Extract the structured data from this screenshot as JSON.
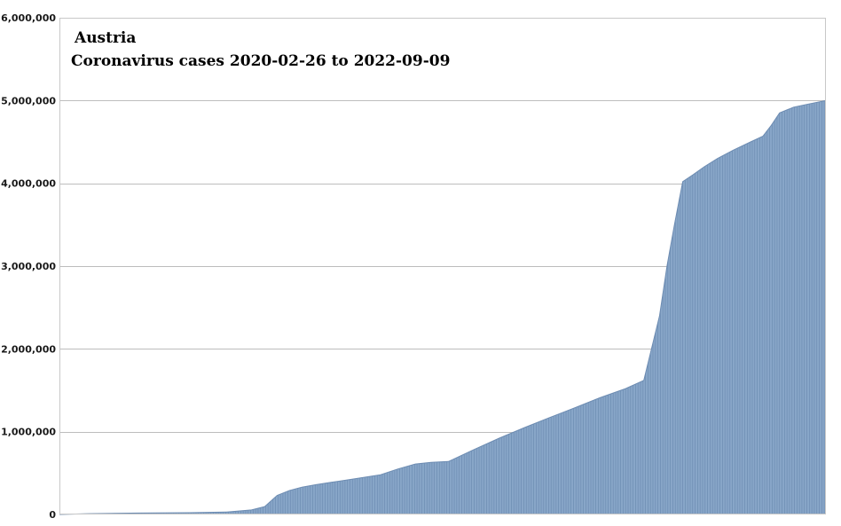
{
  "chart_data": {
    "type": "area",
    "title": "Austria",
    "subtitle": "Coronavirus cases 2020-02-26 to 2022-09-09",
    "xlabel": "",
    "ylabel": "",
    "x_start": "2020-02-26",
    "x_end": "2022-09-09",
    "ylim": [
      0,
      6000000
    ],
    "yticks": [
      0,
      1000000,
      2000000,
      3000000,
      4000000,
      5000000,
      6000000
    ],
    "ytick_labels": [
      "0",
      "1,000,000",
      "2,000,000",
      "3,000,000",
      "4,000,000",
      "5,000,000",
      "6,000,000"
    ],
    "grid": true,
    "legend": "none",
    "series": [
      {
        "x": [
          "2020-02-26",
          "2020-04-01",
          "2020-06-01",
          "2020-08-01",
          "2020-09-15",
          "2020-10-15",
          "2020-10-31",
          "2020-11-15",
          "2020-11-30",
          "2020-12-15",
          "2021-01-01",
          "2021-01-20",
          "2021-02-10",
          "2021-03-01",
          "2021-03-20",
          "2021-04-10",
          "2021-05-01",
          "2021-05-20",
          "2021-06-10",
          "2021-07-10",
          "2021-08-10",
          "2021-09-10",
          "2021-10-10",
          "2021-11-10",
          "2021-12-10",
          "2022-01-10",
          "2022-02-01",
          "2022-02-20",
          "2022-03-01",
          "2022-03-10",
          "2022-03-20",
          "2022-04-01",
          "2022-04-15",
          "2022-05-01",
          "2022-05-20",
          "2022-06-10",
          "2022-06-25",
          "2022-07-05",
          "2022-07-15",
          "2022-08-01",
          "2022-08-20",
          "2022-09-09"
        ],
        "y": [
          0,
          10000,
          17000,
          22000,
          30000,
          55000,
          95000,
          230000,
          290000,
          330000,
          360000,
          390000,
          420000,
          450000,
          480000,
          550000,
          610000,
          630000,
          640000,
          780000,
          920000,
          1050000,
          1170000,
          1290000,
          1410000,
          1520000,
          1620000,
          2400000,
          3000000,
          3500000,
          4020000,
          4100000,
          4200000,
          4300000,
          4400000,
          4500000,
          4570000,
          4700000,
          4850000,
          4920000,
          4960000,
          5000000
        ]
      }
    ],
    "colors": {
      "fill": "#88a6c8",
      "bar_line": "#6d8cb2",
      "grid": "#bdbdbd",
      "frame": "#c8c8c8"
    }
  }
}
